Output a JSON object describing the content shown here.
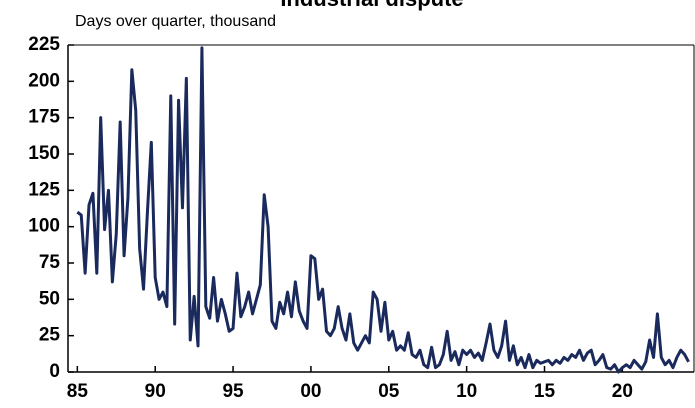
{
  "chart_data": {
    "type": "line",
    "title": "Industrial dispute",
    "subtitle": "Days over quarter, thousand",
    "x": [
      1985,
      1985.25,
      1985.5,
      1985.75,
      1986,
      1986.25,
      1986.5,
      1986.75,
      1987,
      1987.25,
      1987.5,
      1987.75,
      1988,
      1988.25,
      1988.5,
      1988.75,
      1989,
      1989.25,
      1989.5,
      1989.75,
      1990,
      1990.25,
      1990.5,
      1990.75,
      1991,
      1991.25,
      1991.5,
      1991.75,
      1992,
      1992.25,
      1992.5,
      1992.75,
      1993,
      1993.25,
      1993.5,
      1993.75,
      1994,
      1994.25,
      1994.5,
      1994.75,
      1995,
      1995.25,
      1995.5,
      1995.75,
      1996,
      1996.25,
      1996.5,
      1996.75,
      1997,
      1997.25,
      1997.5,
      1997.75,
      1998,
      1998.25,
      1998.5,
      1998.75,
      1999,
      1999.25,
      1999.5,
      1999.75,
      2000,
      2000.25,
      2000.5,
      2000.75,
      2001,
      2001.25,
      2001.5,
      2001.75,
      2002,
      2002.25,
      2002.5,
      2002.75,
      2003,
      2003.25,
      2003.5,
      2003.75,
      2004,
      2004.25,
      2004.5,
      2004.75,
      2005,
      2005.25,
      2005.5,
      2005.75,
      2006,
      2006.25,
      2006.5,
      2006.75,
      2007,
      2007.25,
      2007.5,
      2007.75,
      2008,
      2008.25,
      2008.5,
      2008.75,
      2009,
      2009.25,
      2009.5,
      2009.75,
      2010,
      2010.25,
      2010.5,
      2010.75,
      2011,
      2011.25,
      2011.5,
      2011.75,
      2012,
      2012.25,
      2012.5,
      2012.75,
      2013,
      2013.25,
      2013.5,
      2013.75,
      2014,
      2014.25,
      2014.5,
      2014.75,
      2015,
      2015.25,
      2015.5,
      2015.75,
      2016,
      2016.25,
      2016.5,
      2016.75,
      2017,
      2017.25,
      2017.5,
      2017.75,
      2018,
      2018.25,
      2018.5,
      2018.75,
      2019,
      2019.25,
      2019.5,
      2019.75,
      2020,
      2020.25,
      2020.5,
      2020.75,
      2021,
      2021.25,
      2021.5,
      2021.75,
      2022,
      2022.25,
      2022.5,
      2022.75,
      2023,
      2023.25,
      2023.5,
      2023.75,
      2024,
      2024.25
    ],
    "series": [
      {
        "name": "Days over quarter",
        "color": "#1b2a5c",
        "values": [
          110,
          108,
          68,
          115,
          123,
          68,
          175,
          98,
          125,
          62,
          95,
          172,
          80,
          120,
          208,
          180,
          85,
          57,
          110,
          158,
          65,
          50,
          55,
          45,
          190,
          33,
          187,
          113,
          202,
          22,
          52,
          18,
          223,
          45,
          37,
          65,
          35,
          50,
          40,
          28,
          30,
          68,
          38,
          45,
          55,
          40,
          50,
          60,
          122,
          100,
          35,
          30,
          48,
          40,
          55,
          38,
          62,
          42,
          35,
          30,
          80,
          78,
          50,
          57,
          28,
          25,
          30,
          45,
          30,
          22,
          40,
          20,
          15,
          20,
          25,
          20,
          55,
          50,
          28,
          48,
          22,
          28,
          15,
          18,
          15,
          27,
          12,
          10,
          15,
          5,
          3,
          17,
          3,
          5,
          12,
          28,
          8,
          14,
          5,
          15,
          12,
          15,
          10,
          13,
          8,
          20,
          33,
          15,
          10,
          18,
          35,
          8,
          18,
          5,
          10,
          3,
          12,
          3,
          8,
          6,
          7,
          8,
          5,
          8,
          6,
          10,
          8,
          12,
          10,
          15,
          8,
          13,
          15,
          5,
          8,
          12,
          3,
          2,
          5,
          0,
          3,
          5,
          3,
          8,
          5,
          2,
          7,
          22,
          10,
          40,
          10,
          5,
          8,
          3,
          10,
          15,
          12,
          7
        ]
      }
    ],
    "xlim": [
      1984.4,
      2024.6
    ],
    "xticks": [
      {
        "value": 1985,
        "label": "85"
      },
      {
        "value": 1990,
        "label": "90"
      },
      {
        "value": 1995,
        "label": "95"
      },
      {
        "value": 2000,
        "label": "00"
      },
      {
        "value": 2005,
        "label": "05"
      },
      {
        "value": 2010,
        "label": "10"
      },
      {
        "value": 2015,
        "label": "15"
      },
      {
        "value": 2020,
        "label": "20"
      }
    ],
    "ylim": [
      0,
      225
    ],
    "yticks": [
      0,
      25,
      50,
      75,
      100,
      125,
      150,
      175,
      200,
      225
    ]
  }
}
